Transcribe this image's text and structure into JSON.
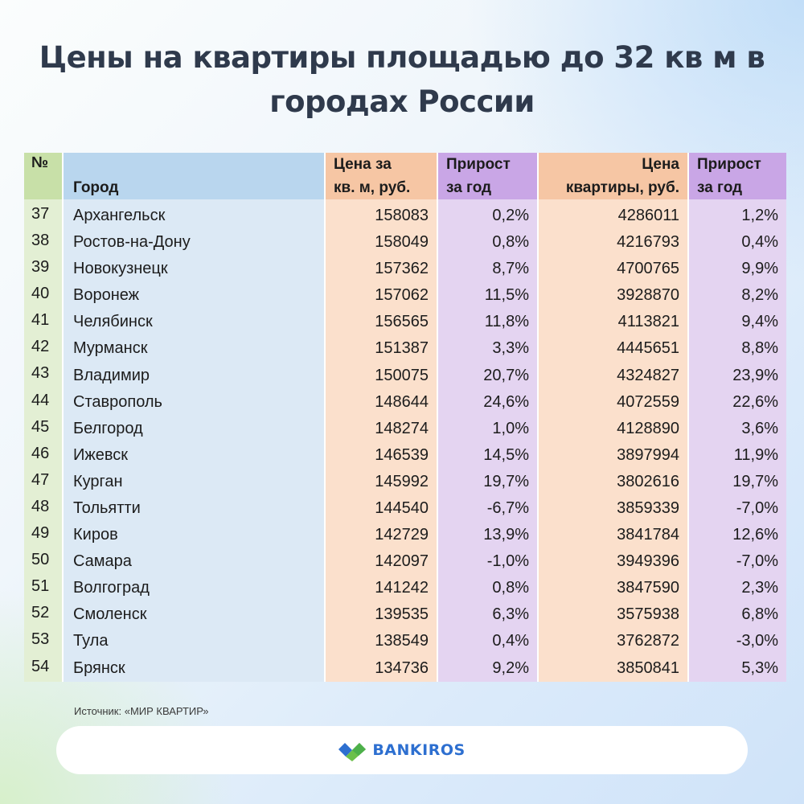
{
  "title": "Цены на квартиры площадью до 32 кв м в городах России",
  "table": {
    "headers": {
      "num": "№",
      "city": "Город",
      "price_sqm": [
        "Цена за",
        "кв. м, руб."
      ],
      "growth_sqm": [
        "Прирост",
        "за год"
      ],
      "price_total": [
        "Цена",
        "квартиры, руб."
      ],
      "growth_total": [
        "Прирост",
        "за год"
      ]
    },
    "rows": [
      {
        "num": "37",
        "city": "Архангельск",
        "price_sqm": "158083",
        "growth_sqm": "0,2%",
        "price_total": "4286011",
        "growth_total": "1,2%"
      },
      {
        "num": "38",
        "city": "Ростов-на-Дону",
        "price_sqm": "158049",
        "growth_sqm": "0,8%",
        "price_total": "4216793",
        "growth_total": "0,4%"
      },
      {
        "num": "39",
        "city": "Новокузнецк",
        "price_sqm": "157362",
        "growth_sqm": "8,7%",
        "price_total": "4700765",
        "growth_total": "9,9%"
      },
      {
        "num": "40",
        "city": "Воронеж",
        "price_sqm": "157062",
        "growth_sqm": "11,5%",
        "price_total": "3928870",
        "growth_total": "8,2%"
      },
      {
        "num": "41",
        "city": "Челябинск",
        "price_sqm": "156565",
        "growth_sqm": "11,8%",
        "price_total": "4113821",
        "growth_total": "9,4%"
      },
      {
        "num": "42",
        "city": "Мурманск",
        "price_sqm": "151387",
        "growth_sqm": "3,3%",
        "price_total": "4445651",
        "growth_total": "8,8%"
      },
      {
        "num": "43",
        "city": "Владимир",
        "price_sqm": "150075",
        "growth_sqm": "20,7%",
        "price_total": "4324827",
        "growth_total": "23,9%"
      },
      {
        "num": "44",
        "city": "Ставрополь",
        "price_sqm": "148644",
        "growth_sqm": "24,6%",
        "price_total": "4072559",
        "growth_total": "22,6%"
      },
      {
        "num": "45",
        "city": "Белгород",
        "price_sqm": "148274",
        "growth_sqm": "1,0%",
        "price_total": "4128890",
        "growth_total": "3,6%"
      },
      {
        "num": "46",
        "city": "Ижевск",
        "price_sqm": "146539",
        "growth_sqm": "14,5%",
        "price_total": "3897994",
        "growth_total": "11,9%"
      },
      {
        "num": "47",
        "city": "Курган",
        "price_sqm": "145992",
        "growth_sqm": "19,7%",
        "price_total": "3802616",
        "growth_total": "19,7%"
      },
      {
        "num": "48",
        "city": "Тольятти",
        "price_sqm": "144540",
        "growth_sqm": "-6,7%",
        "price_total": "3859339",
        "growth_total": "-7,0%"
      },
      {
        "num": "49",
        "city": "Киров",
        "price_sqm": "142729",
        "growth_sqm": "13,9%",
        "price_total": "3841784",
        "growth_total": "12,6%"
      },
      {
        "num": "50",
        "city": "Самара",
        "price_sqm": "142097",
        "growth_sqm": "-1,0%",
        "price_total": "3949396",
        "growth_total": "-7,0%"
      },
      {
        "num": "51",
        "city": "Волгоград",
        "price_sqm": "141242",
        "growth_sqm": "0,8%",
        "price_total": "3847590",
        "growth_total": "2,3%"
      },
      {
        "num": "52",
        "city": "Смоленск",
        "price_sqm": "139535",
        "growth_sqm": "6,3%",
        "price_total": "3575938",
        "growth_total": "6,8%"
      },
      {
        "num": "53",
        "city": "Тула",
        "price_sqm": "138549",
        "growth_sqm": "0,4%",
        "price_total": "3762872",
        "growth_total": "-3,0%"
      },
      {
        "num": "54",
        "city": "Брянск",
        "price_sqm": "134736",
        "growth_sqm": "9,2%",
        "price_total": "3850841",
        "growth_total": "5,3%"
      }
    ]
  },
  "source": "Источник: «МИР КВАРТИР»",
  "brand": {
    "name": "BANKIROS",
    "icon": "bankiros-logo-icon",
    "colors": {
      "blue": "#2d6fd0",
      "green": "#6cc04a"
    }
  }
}
